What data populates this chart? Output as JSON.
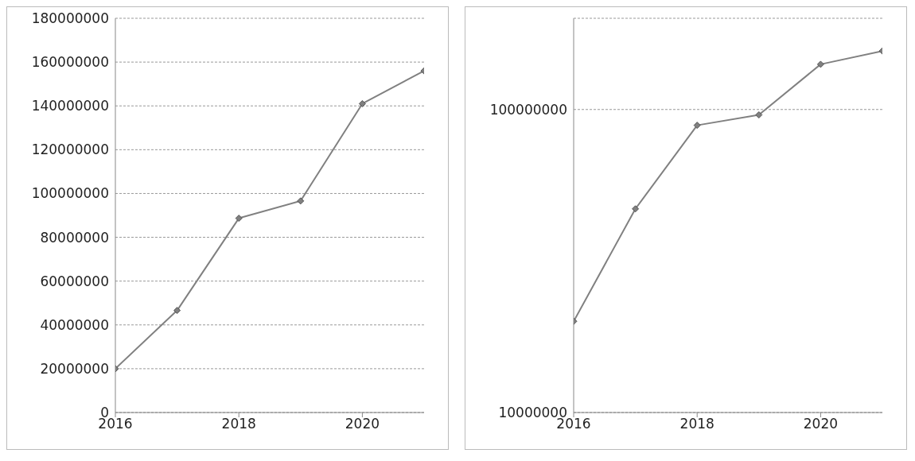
{
  "chart_data": [
    {
      "type": "line",
      "x": [
        2016,
        2017,
        2018,
        2019,
        2020,
        2021
      ],
      "values": [
        20000000,
        46600000,
        88700000,
        96600000,
        141000000,
        156000000
      ],
      "color": "#808080",
      "xlim": [
        2016,
        2021
      ],
      "xticks": [
        2016,
        2018,
        2020
      ],
      "ylim": [
        0,
        180000000
      ],
      "yticks": [
        0,
        20000000,
        40000000,
        60000000,
        80000000,
        100000000,
        120000000,
        140000000,
        160000000,
        180000000
      ],
      "grid": "y",
      "marker": "diamond"
    },
    {
      "type": "line",
      "x": [
        2016,
        2017,
        2018,
        2019,
        2020,
        2021
      ],
      "values": [
        20000000,
        47000000,
        88700000,
        96000000,
        141000000,
        156000000
      ],
      "color": "#808080",
      "xlim": [
        2016,
        2021
      ],
      "xticks": [
        2016,
        2018,
        2020
      ],
      "ylim": [
        10000000,
        200000000
      ],
      "yticks": [
        10000000,
        100000000
      ],
      "log": true,
      "grid": "y",
      "marker": "diamond"
    }
  ]
}
